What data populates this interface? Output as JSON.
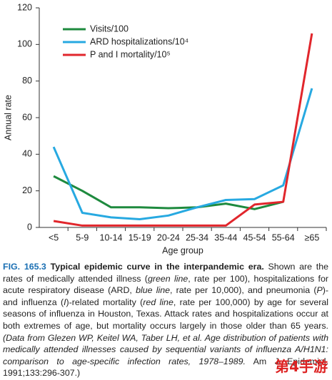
{
  "chart_data": {
    "type": "line",
    "categories": [
      "<5",
      "5-9",
      "10-14",
      "15-19",
      "20-24",
      "25-34",
      "35-44",
      "45-54",
      "55-64",
      "≥65"
    ],
    "series": [
      {
        "name": "Visits/100",
        "color": "#1e8a3e",
        "values": [
          28,
          20,
          11,
          11,
          10.5,
          11,
          13,
          10,
          14,
          null
        ]
      },
      {
        "name": "ARD hospitalizations/10⁴",
        "color": "#27a9e1",
        "values": [
          44,
          8,
          5.5,
          4.5,
          6.5,
          11,
          15,
          15.5,
          23,
          76
        ]
      },
      {
        "name": "P and I mortality/10⁵",
        "color": "#e1262c",
        "values": [
          3.5,
          1,
          1,
          1,
          1,
          1,
          1,
          12.5,
          14,
          106
        ]
      }
    ],
    "ylim": [
      0,
      120
    ],
    "yticks": [
      0,
      20,
      40,
      60,
      80,
      100,
      120
    ],
    "y_label": "Annual rate",
    "x_label": "Age group",
    "grid": false,
    "legend": "upper-left"
  },
  "caption": {
    "label": "FIG. 165.3",
    "heading": "Typical epidemic curve in the interpandemic era.",
    "runs": [
      {
        "text": "Shown are the rates of medically attended illness (",
        "italic": false
      },
      {
        "text": "green line",
        "italic": true
      },
      {
        "text": ", rate per 100), hospitalizations for acute respiratory disease (ARD, ",
        "italic": false
      },
      {
        "text": "blue line",
        "italic": true
      },
      {
        "text": ", rate per 10,000), and pneumonia (",
        "italic": false
      },
      {
        "text": "P",
        "italic": true
      },
      {
        "text": ")- and influenza (",
        "italic": false
      },
      {
        "text": "I",
        "italic": true
      },
      {
        "text": ")-related mortality (",
        "italic": false
      },
      {
        "text": "red line",
        "italic": true
      },
      {
        "text": ", rate per 100,000) by age for several seasons of influenza in Houston, Texas. Attack rates and hospitalizations occur at both extremes of age, but mortality occurs largely in those older than 65 years. ",
        "italic": false
      },
      {
        "text": "(Data from Glezen WP, Keitel WA, Taber LH, et al. Age distribution of patients with medically attended illnesses caused by sequential variants of influenza A/H1N1: comparison to age-specific infection rates, 1978–1989.",
        "italic": true
      },
      {
        "text": " Am J Epidemiol. 1991;133:296-307.)",
        "italic": false
      }
    ]
  },
  "watermark": "第4手游"
}
